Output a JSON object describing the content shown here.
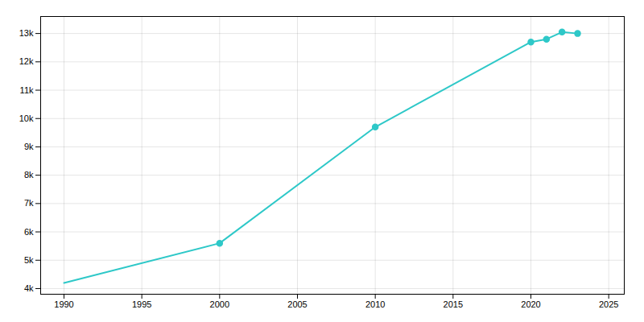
{
  "chart_data": {
    "type": "line",
    "x": [
      1990,
      2000,
      2010,
      2020,
      2021,
      2022,
      2023
    ],
    "series": [
      {
        "type": "line",
        "color": "#2EC8C8",
        "values": [
          4200,
          5600,
          9700,
          12700,
          12800,
          13050,
          13000
        ]
      },
      {
        "type": "scatter",
        "marker": "o",
        "color": "#2EC8C8",
        "values": [
          null,
          5600,
          9700,
          12700,
          12800,
          13050,
          13000
        ]
      }
    ],
    "xlim": [
      1988.5,
      2026
    ],
    "ylim": [
      3800,
      13600
    ],
    "xticks": [
      1990,
      1995,
      2000,
      2005,
      2010,
      2015,
      2020,
      2025
    ],
    "yticks": [
      {
        "value": 4000,
        "label": "4k"
      },
      {
        "value": 5000,
        "label": "5k"
      },
      {
        "value": 6000,
        "label": "6k"
      },
      {
        "value": 7000,
        "label": "7k"
      },
      {
        "value": 8000,
        "label": "8k"
      },
      {
        "value": 9000,
        "label": "9k"
      },
      {
        "value": 10000,
        "label": "10k"
      },
      {
        "value": 11000,
        "label": "11k"
      },
      {
        "value": 12000,
        "label": "12k"
      },
      {
        "value": 13000,
        "label": "13k"
      }
    ],
    "grid": true
  }
}
